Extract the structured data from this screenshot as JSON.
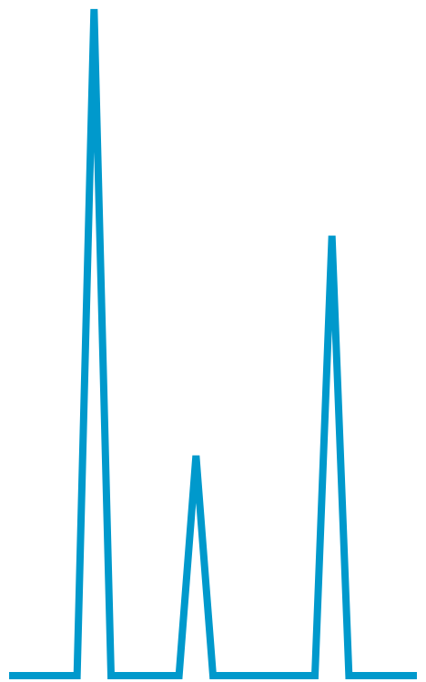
{
  "chart_data": {
    "type": "line",
    "x": [
      0,
      1,
      2,
      3,
      4,
      5,
      6,
      7,
      8,
      9,
      10,
      11,
      12,
      13,
      14,
      15,
      16,
      17,
      18,
      19,
      20,
      21,
      22,
      23,
      24
    ],
    "series": [
      {
        "values": [
          0,
          0,
          0,
          0,
          0,
          100,
          0,
          0,
          0,
          0,
          0,
          33,
          0,
          0,
          0,
          0,
          0,
          0,
          0,
          66,
          0,
          0,
          0,
          0,
          0
        ],
        "color": "#0099cc"
      }
    ],
    "xlim": [
      0,
      24
    ],
    "ylim": [
      0,
      100
    ],
    "grid": false,
    "axes_visible": false,
    "legend": "none"
  }
}
